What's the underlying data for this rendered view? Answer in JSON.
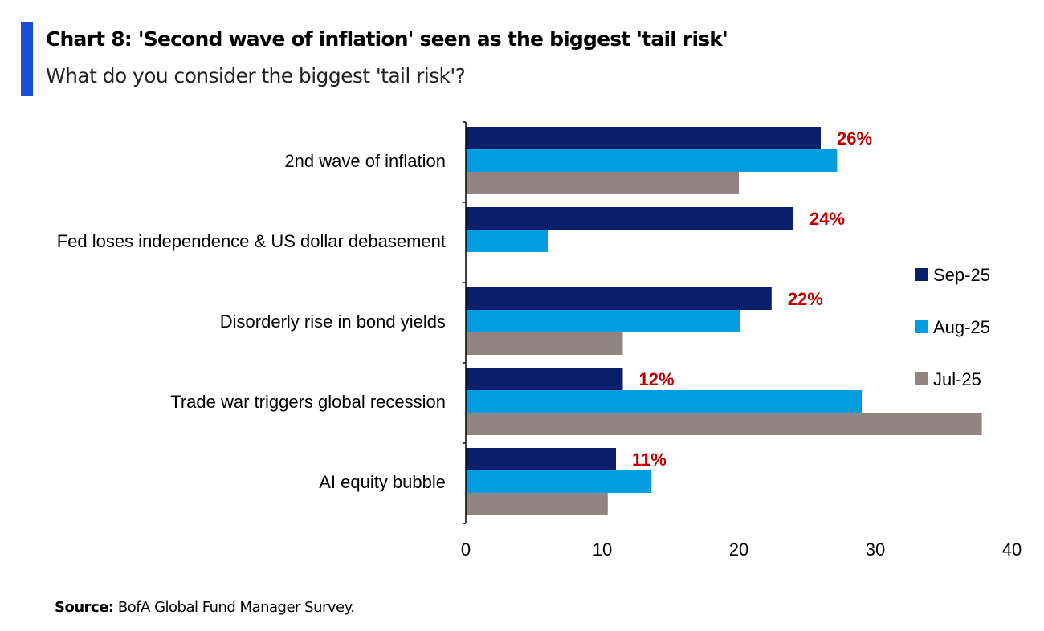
{
  "header": {
    "title": "Chart 8: 'Second wave of inflation' seen as the biggest 'tail risk'",
    "subtitle": "What do you consider the biggest 'tail risk'?"
  },
  "footer": {
    "source_label": "Source:",
    "source_text": "BofA Global Fund Manager Survey."
  },
  "chart_data": {
    "type": "bar",
    "orientation": "horizontal",
    "title": "",
    "xlabel": "",
    "ylabel": "",
    "categories": [
      "2nd wave of inflation",
      "Fed loses independence & US dollar debasement",
      "Disorderly rise in bond yields",
      "Trade war triggers global recession",
      "AI equity bubble"
    ],
    "series": [
      {
        "name": "Sep-25",
        "color": "#0a1f6b",
        "values": [
          26,
          24,
          22.4,
          11.5,
          11
        ]
      },
      {
        "name": "Aug-25",
        "color": "#009ee0",
        "values": [
          27.2,
          6,
          20.1,
          29,
          13.6
        ]
      },
      {
        "name": "Jul-25",
        "color": "#918584",
        "values": [
          20,
          null,
          11.5,
          37.8,
          10.4
        ]
      }
    ],
    "data_labels": [
      "26%",
      "24%",
      "22%",
      "12%",
      "11%"
    ],
    "data_label_color": "#c00000",
    "xlim": [
      0,
      40
    ],
    "xticks": [
      0,
      10,
      20,
      30,
      40
    ],
    "grid": false,
    "legend_position": "right"
  }
}
